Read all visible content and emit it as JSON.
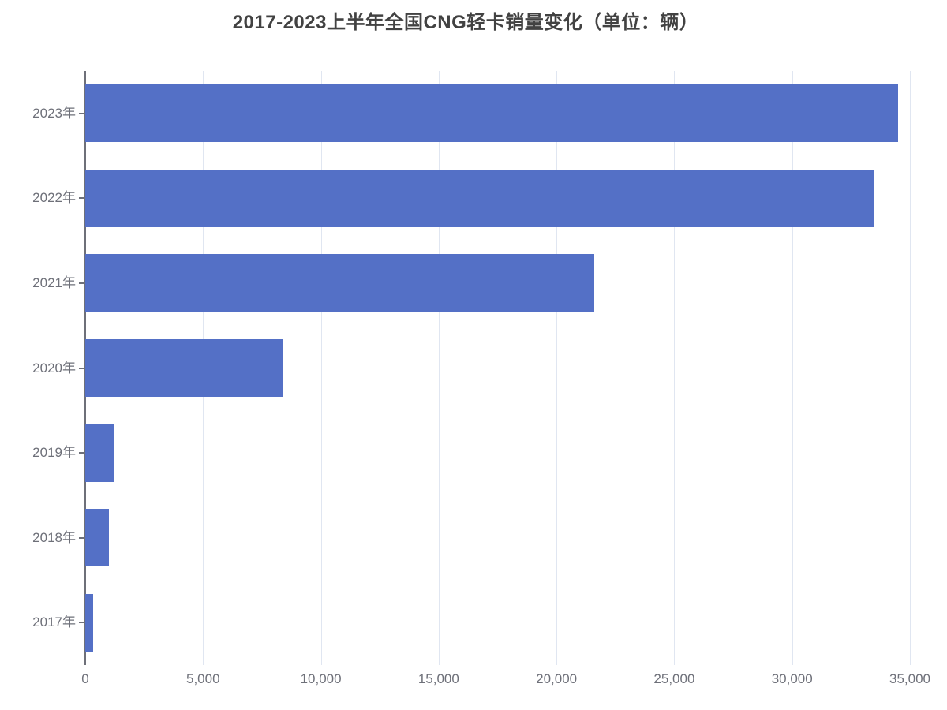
{
  "title": "2017-2023上半年全国CNG轻卡销量变化（单位：辆）",
  "chart_data": {
    "type": "bar",
    "orientation": "horizontal",
    "title": "2017-2023上半年全国CNG轻卡销量变化（单位：辆）",
    "categories": [
      "2023年",
      "2022年",
      "2021年",
      "2020年",
      "2019年",
      "2018年",
      "2017年"
    ],
    "values": [
      34500,
      33500,
      21600,
      8400,
      1200,
      1000,
      340
    ],
    "xlabel": "",
    "ylabel": "",
    "xlim": [
      0,
      35000
    ],
    "x_ticks": [
      0,
      5000,
      10000,
      15000,
      20000,
      25000,
      30000,
      35000
    ],
    "x_tick_labels": [
      "0",
      "5,000",
      "10,000",
      "15,000",
      "20,000",
      "25,000",
      "30,000",
      "35,000"
    ],
    "grid": true,
    "legend": false,
    "colors": {
      "bar": "#5470c6",
      "gridline": "#e0e6f1",
      "axis_line": "#6e7079",
      "tick_label": "#6e7079",
      "title": "#424242"
    }
  }
}
